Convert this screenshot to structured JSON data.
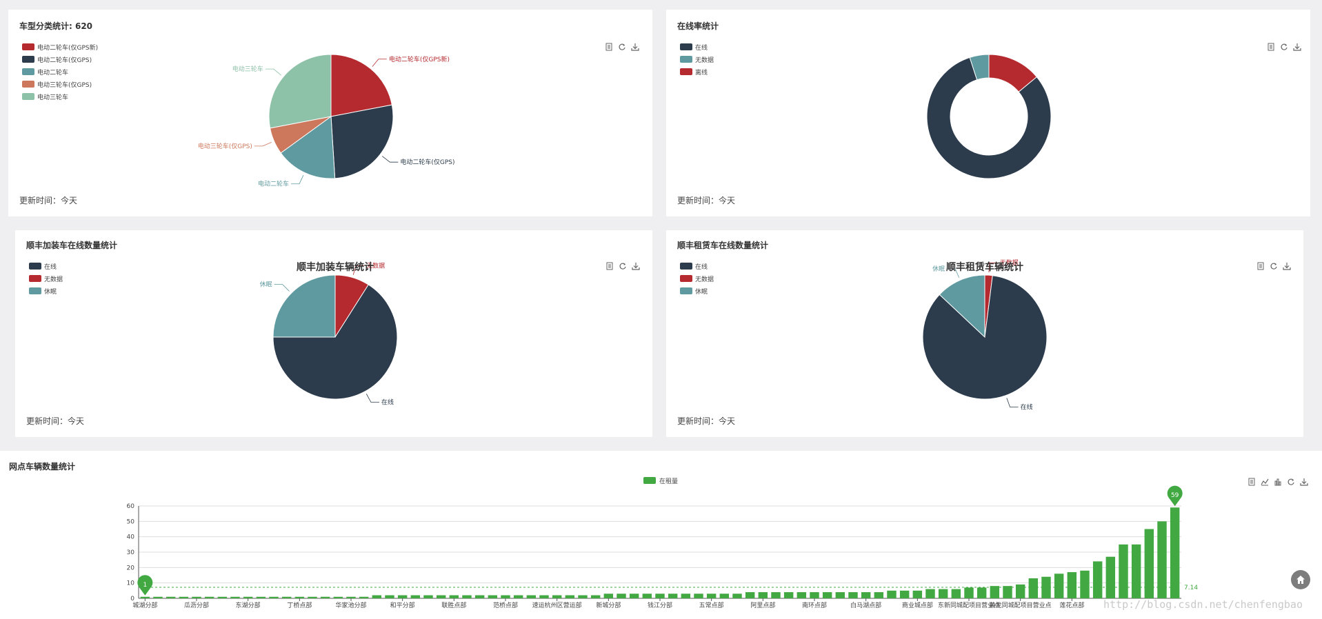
{
  "panels": {
    "vehicle_type": {
      "title": "车型分类统计: 620",
      "update": "更新时间：今天",
      "legend": [
        {
          "label": "电动二轮车(仅GPS新)",
          "color": "#b52a2f"
        },
        {
          "label": "电动二轮车(仅GPS)",
          "color": "#2c3c4c"
        },
        {
          "label": "电动二轮车",
          "color": "#5f9aa0"
        },
        {
          "label": "电动三轮车(仅GPS)",
          "color": "#cd785c"
        },
        {
          "label": "电动三轮车",
          "color": "#8dc1a8"
        }
      ]
    },
    "online_rate": {
      "title": "在线率统计",
      "update": "更新时间：今天",
      "legend": [
        {
          "label": "在线",
          "color": "#2c3c4c"
        },
        {
          "label": "无数据",
          "color": "#5f9aa0"
        },
        {
          "label": "离线",
          "color": "#b52a2f"
        }
      ]
    },
    "sf_install": {
      "title": "顺丰加装车在线数量统计",
      "update": "更新时间：今天",
      "legend": [
        {
          "label": "在线",
          "color": "#2c3c4c"
        },
        {
          "label": "无数据",
          "color": "#b52a2f"
        },
        {
          "label": "休眠",
          "color": "#5f9aa0"
        }
      ]
    },
    "sf_rental": {
      "title": "顺丰租赁车在线数量统计",
      "update": "更新时间：今天",
      "legend": [
        {
          "label": "在线",
          "color": "#2c3c4c"
        },
        {
          "label": "无数据",
          "color": "#b52a2f"
        },
        {
          "label": "休眠",
          "color": "#5f9aa0"
        }
      ]
    },
    "branch": {
      "title": "网点车辆数量统计"
    }
  },
  "icons": {
    "pie_tools": [
      "data-view-icon",
      "refresh-icon",
      "download-icon"
    ],
    "bar_tools": [
      "data-view-icon",
      "line-chart-icon",
      "bar-chart-icon",
      "refresh-icon",
      "download-icon"
    ],
    "home": "home-icon"
  },
  "watermark": "http://blog.csdn.net/chenfengbao",
  "chart_data": [
    {
      "type": "pie",
      "title": "",
      "categories": [
        "电动二轮车(仅GPS新)",
        "电动二轮车(仅GPS)",
        "电动二轮车",
        "电动三轮车(仅GPS)",
        "电动三轮车"
      ],
      "values": [
        22,
        27,
        16,
        7,
        28
      ],
      "colors": [
        "#b52a2f",
        "#2c3c4c",
        "#5f9aa0",
        "#cd785c",
        "#8dc1a8"
      ]
    },
    {
      "type": "pie",
      "donut": true,
      "title": "",
      "categories": [
        "离线",
        "在线",
        "无数据"
      ],
      "values": [
        14,
        81,
        5
      ],
      "colors": [
        "#b52a2f",
        "#2c3c4c",
        "#5f9aa0"
      ]
    },
    {
      "type": "pie",
      "title": "顺丰加装车辆统计",
      "categories": [
        "无数据",
        "在线",
        "休眠"
      ],
      "values": [
        9,
        66,
        25
      ],
      "colors": [
        "#b52a2f",
        "#2c3c4c",
        "#5f9aa0"
      ]
    },
    {
      "type": "pie",
      "title": "顺丰租赁车辆统计",
      "categories": [
        "无数据",
        "在线",
        "休眠"
      ],
      "values": [
        2,
        85,
        13
      ],
      "colors": [
        "#b52a2f",
        "#2c3c4c",
        "#5f9aa0"
      ]
    },
    {
      "type": "bar",
      "title": "",
      "series": [
        {
          "name": "在租量",
          "color": "#42a942"
        }
      ],
      "legend": "在租量",
      "xtick_labels": [
        "城湖分部",
        "瓜沥分部",
        "东湖分部",
        "丁桥点部",
        "华家池分部",
        "和平分部",
        "联胜点部",
        "范桥点部",
        "速运杭州区营运部",
        "新城分部",
        "钱江分部",
        "五常点部",
        "阿里点部",
        "南环点部",
        "白马湖点部",
        "商业城点部",
        "东新同城配项目营业点",
        "黄龙同城配项目营业点",
        "莲花点部"
      ],
      "values": [
        1,
        1,
        1,
        1,
        1,
        1,
        1,
        1,
        1,
        1,
        1,
        1,
        1,
        1,
        1,
        1,
        1,
        1,
        2,
        2,
        2,
        2,
        2,
        2,
        2,
        2,
        2,
        2,
        2,
        2,
        2,
        2,
        2,
        2,
        2,
        2,
        3,
        3,
        3,
        3,
        3,
        3,
        3,
        3,
        3,
        3,
        3,
        4,
        4,
        4,
        4,
        4,
        4,
        4,
        4,
        4,
        4,
        4,
        5,
        5,
        5,
        6,
        6,
        6,
        7,
        7,
        8,
        8,
        9,
        13,
        14,
        16,
        17,
        18,
        24,
        27,
        35,
        35,
        45,
        50,
        59
      ],
      "yticks": [
        0,
        10,
        20,
        30,
        40,
        50,
        60
      ],
      "ylim": [
        0,
        60
      ],
      "mark_points": {
        "max": "59",
        "min": "1"
      },
      "mark_line": {
        "label": "7.14",
        "value": 7.14
      }
    }
  ]
}
